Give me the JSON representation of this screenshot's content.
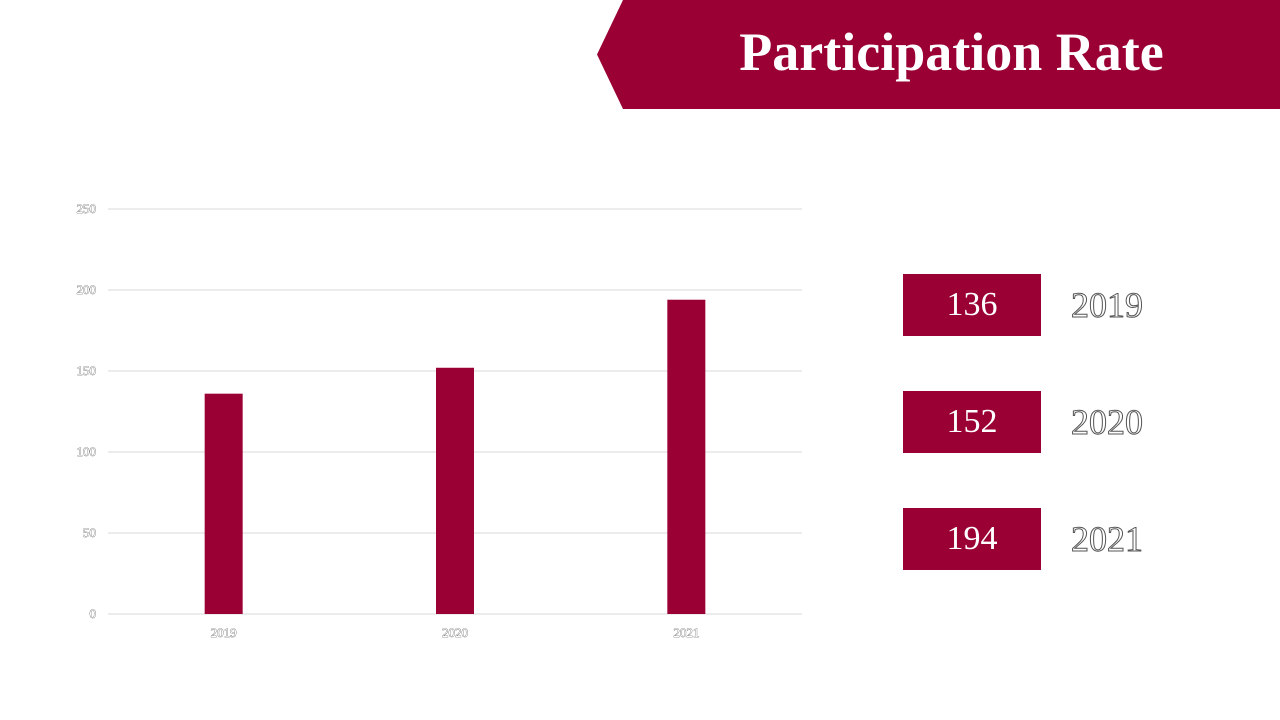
{
  "slide": {
    "title": "Participation Rate"
  },
  "colors": {
    "accent": "#9b0034",
    "gridline": "#d9d9d9",
    "text_light": "#ffffff"
  },
  "chart_data": {
    "type": "bar",
    "categories": [
      "2019",
      "2020",
      "2021"
    ],
    "values": [
      136,
      152,
      194
    ],
    "y_ticks": [
      "0",
      "50",
      "100",
      "150",
      "200",
      "250"
    ],
    "ylim": [
      0,
      250
    ],
    "grid": true,
    "legend": "none"
  },
  "summary": [
    {
      "value": "136",
      "year": "2019"
    },
    {
      "value": "152",
      "year": "2020"
    },
    {
      "value": "194",
      "year": "2021"
    }
  ]
}
